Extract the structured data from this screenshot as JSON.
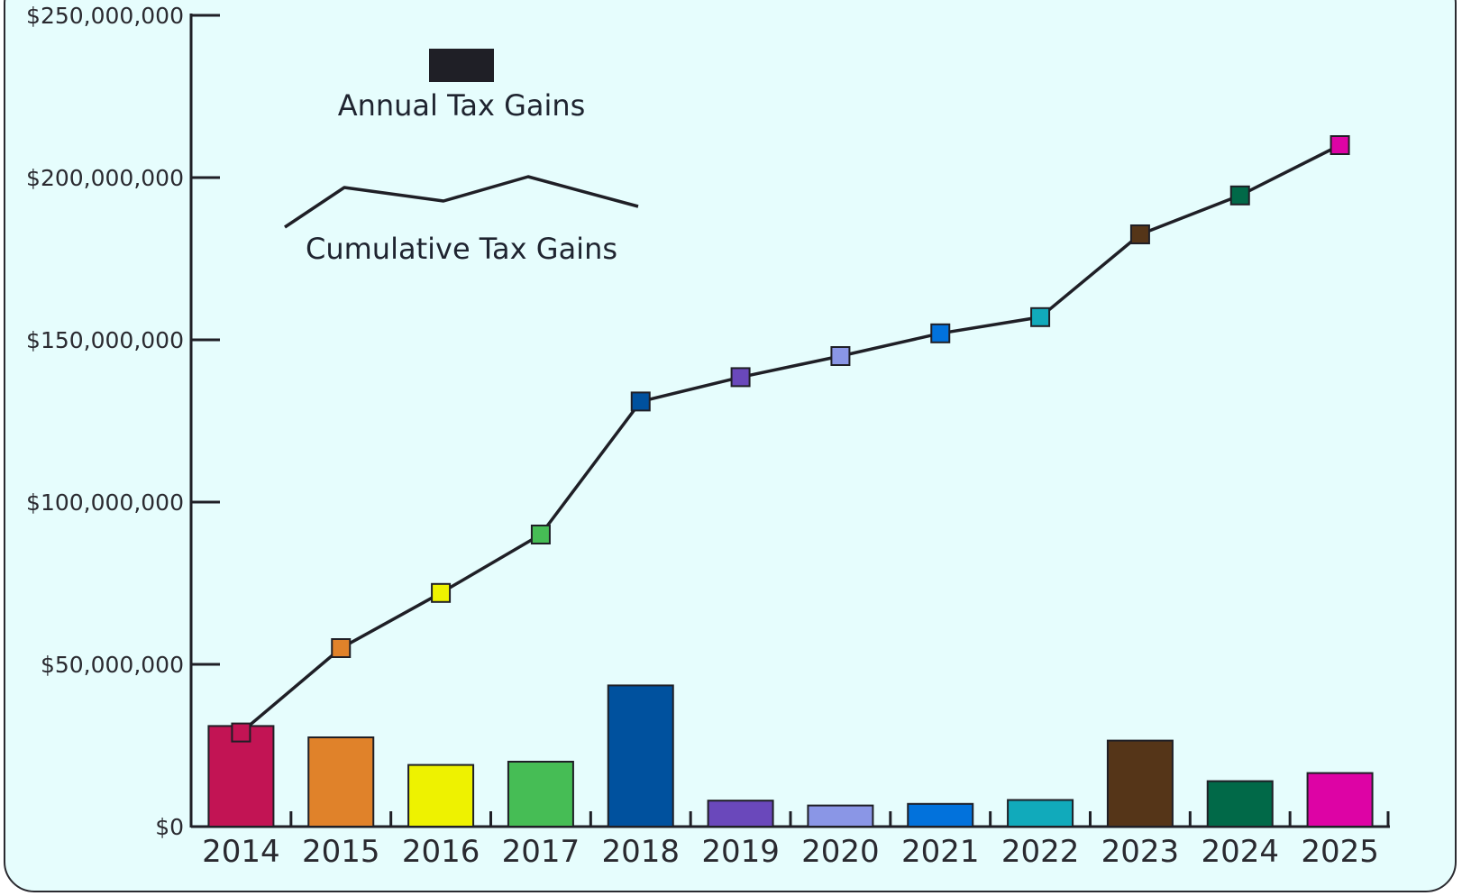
{
  "chart_data": {
    "type": "bar",
    "categories": [
      "2014",
      "2015",
      "2016",
      "2017",
      "2018",
      "2019",
      "2020",
      "2021",
      "2022",
      "2023",
      "2024",
      "2025"
    ],
    "series": [
      {
        "name": "Annual Tax Gains",
        "type": "bar",
        "values": [
          31000000,
          27500000,
          19000000,
          20000000,
          43500000,
          8000000,
          6500000,
          7000000,
          8200000,
          26500000,
          14000000,
          16500000
        ]
      },
      {
        "name": "Cumulative Tax Gains",
        "type": "line",
        "values": [
          29000000,
          55000000,
          72000000,
          90000000,
          131000000,
          138500000,
          145000000,
          152000000,
          157000000,
          182500000,
          194500000,
          210000000
        ]
      }
    ],
    "colors": [
      "#c21454",
      "#e0822a",
      "#eef200",
      "#46bd55",
      "#00519e",
      "#6a48bb",
      "#8a96e6",
      "#0272dc",
      "#11aabb",
      "#553518",
      "#016948",
      "#dd03a5"
    ],
    "ylim": [
      0,
      250000000
    ],
    "yticks": [
      0,
      50000000,
      100000000,
      150000000,
      200000000,
      250000000
    ],
    "ytick_labels": [
      "$0",
      "$50,000,000",
      "$100,000,000",
      "$150,000,000",
      "$200,000,000",
      "$250,000,000"
    ],
    "title": "",
    "xlabel": "",
    "ylabel": "",
    "grid": false,
    "legend": {
      "placement": "top-left",
      "items": [
        {
          "label": "Annual Tax Gains",
          "symbol": "bar",
          "color": "#1f1f26"
        },
        {
          "label": "Cumulative Tax Gains",
          "symbol": "line",
          "color": "#1f1f26"
        }
      ]
    }
  }
}
